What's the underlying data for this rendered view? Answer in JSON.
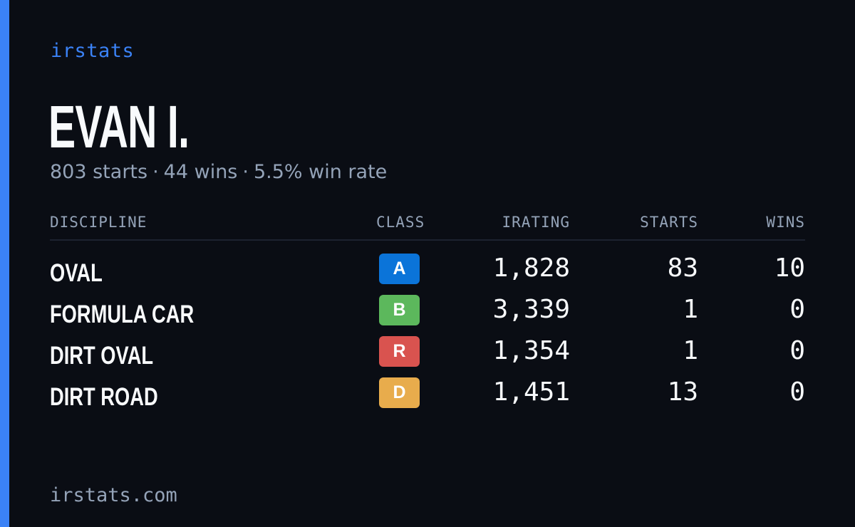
{
  "brand": "irstats",
  "driver": {
    "name": "EVAN I.",
    "starts": "803 starts",
    "wins": "44 wins",
    "win_rate": "5.5% win rate",
    "separator": "·"
  },
  "table": {
    "headers": {
      "discipline": "DISCIPLINE",
      "class": "CLASS",
      "irating": "IRATING",
      "starts": "STARTS",
      "wins": "WINS"
    },
    "rows": [
      {
        "discipline": "OVAL",
        "class": "A",
        "class_color": "#0b74d9",
        "irating": "1,828",
        "starts": "83",
        "wins": "10"
      },
      {
        "discipline": "FORMULA CAR",
        "class": "B",
        "class_color": "#5cb85c",
        "irating": "3,339",
        "starts": "1",
        "wins": "0"
      },
      {
        "discipline": "DIRT OVAL",
        "class": "R",
        "class_color": "#d9534f",
        "irating": "1,354",
        "starts": "1",
        "wins": "0"
      },
      {
        "discipline": "DIRT ROAD",
        "class": "D",
        "class_color": "#e8ac4c",
        "irating": "1,451",
        "starts": "13",
        "wins": "0"
      }
    ]
  },
  "footer": "irstats.com",
  "colors": {
    "background": "#0a0d14",
    "accent": "#3b82f6",
    "muted_text": "#94a3b8"
  }
}
